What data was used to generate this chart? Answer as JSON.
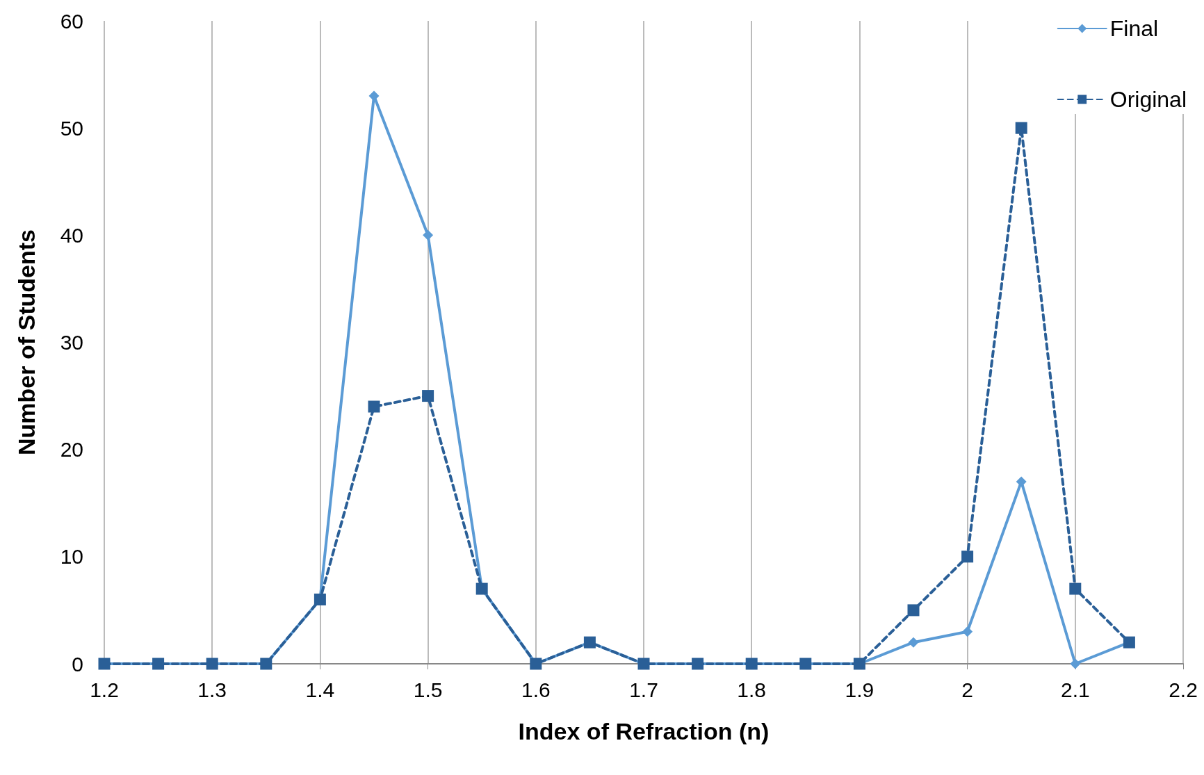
{
  "chart_data": {
    "type": "line",
    "xlabel": "Index of Refraction (n)",
    "ylabel": "Number of Students",
    "x": [
      1.2,
      1.25,
      1.3,
      1.35,
      1.4,
      1.45,
      1.5,
      1.55,
      1.6,
      1.65,
      1.7,
      1.75,
      1.8,
      1.85,
      1.9,
      1.95,
      2.0,
      2.05,
      2.1,
      2.15
    ],
    "series": [
      {
        "name": "Final",
        "color": "#5b9bd5",
        "marker": "diamond",
        "line_style": "solid",
        "values": [
          0,
          0,
          0,
          0,
          6,
          53,
          40,
          7,
          0,
          2,
          0,
          0,
          0,
          0,
          0,
          2,
          3,
          17,
          0,
          2
        ]
      },
      {
        "name": "Original",
        "color": "#2a5f97",
        "marker": "square",
        "line_style": "dashed",
        "values": [
          0,
          0,
          0,
          0,
          6,
          24,
          25,
          7,
          0,
          2,
          0,
          0,
          0,
          0,
          0,
          5,
          10,
          50,
          7,
          2
        ]
      }
    ],
    "xlim": [
      1.2,
      2.2
    ],
    "xticks": [
      1.2,
      1.3,
      1.4,
      1.5,
      1.6,
      1.7,
      1.8,
      1.9,
      2,
      2.1,
      2.2
    ],
    "ylim": [
      0,
      60
    ],
    "yticks": [
      0,
      10,
      20,
      30,
      40,
      50,
      60
    ],
    "grid": "x",
    "legend": "top right"
  }
}
